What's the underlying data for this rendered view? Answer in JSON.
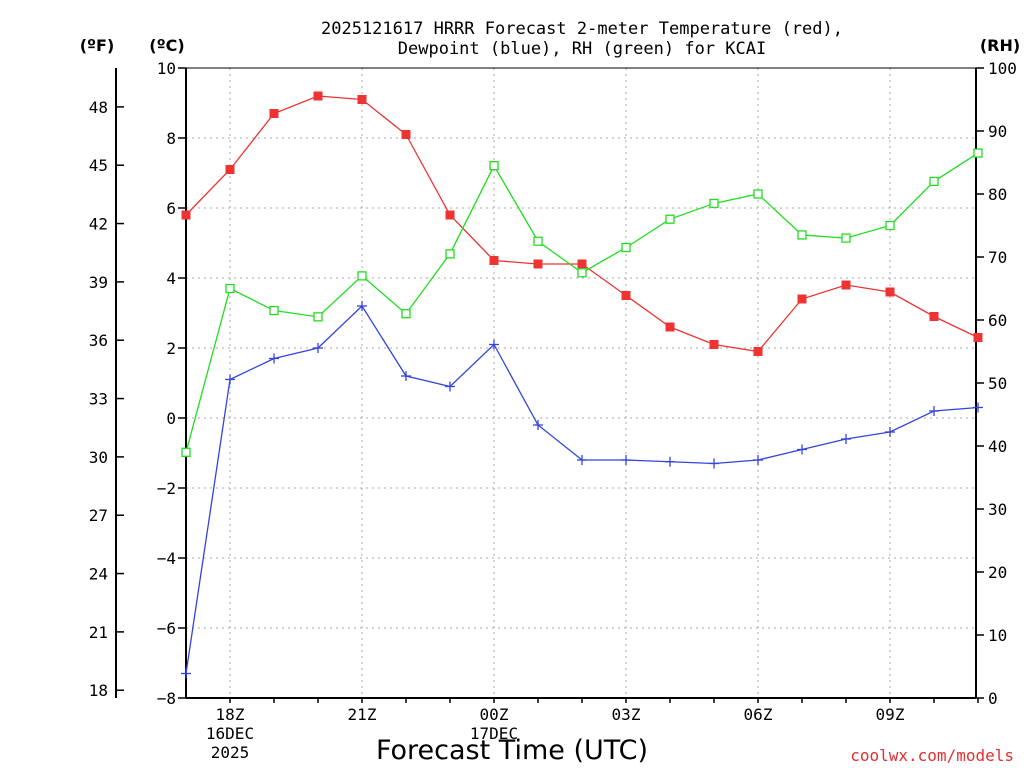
{
  "title": {
    "line1": "2025121617 HRRR Forecast 2-meter Temperature (red),",
    "line2": "Dewpoint (blue), RH (green) for KCAI"
  },
  "units": {
    "f": "(ºF)",
    "c": "(ºC)",
    "rh": "(RH)"
  },
  "credit": "coolwx.com/models",
  "colors": {
    "temp": "#ee3333",
    "dewpoint": "#3344dd",
    "rh": "#22dd22",
    "credit": "#e03030"
  },
  "chart_data": {
    "type": "line",
    "title": "2025121617 HRRR Forecast 2-meter Temperature (red), Dewpoint (blue), RH (green) for KCAI",
    "xlabel": "Forecast Time (UTC)",
    "x": [
      "17Z",
      "18Z",
      "19Z",
      "20Z",
      "21Z",
      "22Z",
      "23Z",
      "00Z",
      "01Z",
      "02Z",
      "03Z",
      "04Z",
      "05Z",
      "06Z",
      "07Z",
      "08Z",
      "09Z",
      "10Z",
      "11Z"
    ],
    "xtick_labels": [
      {
        "index": 1,
        "lines": [
          "18Z",
          "16DEC",
          "2025"
        ]
      },
      {
        "index": 4,
        "lines": [
          "21Z"
        ]
      },
      {
        "index": 7,
        "lines": [
          "00Z",
          "17DEC"
        ]
      },
      {
        "index": 10,
        "lines": [
          "03Z"
        ]
      },
      {
        "index": 13,
        "lines": [
          "06Z"
        ]
      },
      {
        "index": 16,
        "lines": [
          "09Z"
        ]
      }
    ],
    "y_c": {
      "label": "(ºC)",
      "lim": [
        -8,
        10
      ],
      "ticks": [
        "10",
        "8",
        "6",
        "4",
        "2",
        "0",
        "−2",
        "−4",
        "−6",
        "−8"
      ]
    },
    "y_f": {
      "label": "(ºF)",
      "lim": [
        17.6,
        50
      ],
      "ticks": [
        "48",
        "45",
        "42",
        "39",
        "36",
        "33",
        "30",
        "27",
        "24",
        "21",
        "18"
      ]
    },
    "y_rh": {
      "label": "(RH)",
      "lim": [
        0,
        100
      ],
      "ticks": [
        "100",
        "90",
        "80",
        "70",
        "60",
        "50",
        "40",
        "30",
        "20",
        "10",
        "0"
      ]
    },
    "series": [
      {
        "name": "Temperature",
        "axis": "c",
        "marker": "filled-square",
        "values": [
          5.8,
          7.1,
          8.7,
          9.2,
          9.1,
          8.1,
          5.8,
          4.5,
          4.4,
          4.4,
          3.5,
          2.6,
          2.1,
          1.9,
          3.4,
          3.8,
          3.6,
          2.9,
          2.3
        ]
      },
      {
        "name": "Dewpoint",
        "axis": "c",
        "marker": "plus",
        "values": [
          -7.3,
          1.1,
          1.7,
          2.0,
          3.2,
          1.2,
          0.9,
          2.1,
          -0.2,
          -1.2,
          -1.2,
          -1.25,
          -1.3,
          -1.2,
          -0.9,
          -0.6,
          -0.4,
          0.2,
          0.3
        ]
      },
      {
        "name": "RH",
        "axis": "rh",
        "marker": "open-square",
        "values": [
          39,
          65,
          61.5,
          60.5,
          67,
          61,
          70.5,
          84.5,
          72.5,
          67.5,
          71.5,
          76,
          78.5,
          80,
          73.5,
          73,
          75,
          82,
          86.5
        ]
      }
    ]
  }
}
